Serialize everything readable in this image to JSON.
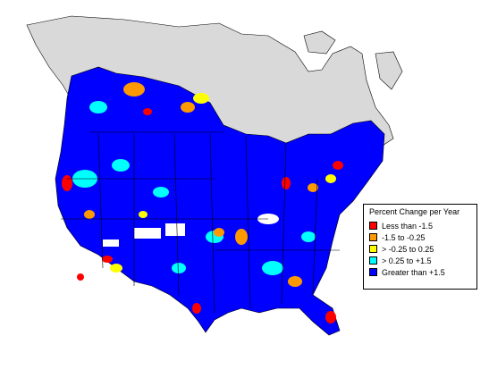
{
  "legend": {
    "title": "Percent Change per Year",
    "items": [
      {
        "label": "Less than -1.5",
        "color": "#ff0000"
      },
      {
        "label": "-1.5 to -0.25",
        "color": "#ff9900"
      },
      {
        "label": "> -0.25 to 0.25",
        "color": "#ffff00"
      },
      {
        "label": "> 0.25 to +1.5",
        "color": "#00ffff"
      },
      {
        "label": "Greater than +1.5",
        "color": "#0000ff"
      }
    ]
  },
  "colors": {
    "canada": "#d9d9d9",
    "no_data": "#ffffff",
    "border": "#000000"
  }
}
